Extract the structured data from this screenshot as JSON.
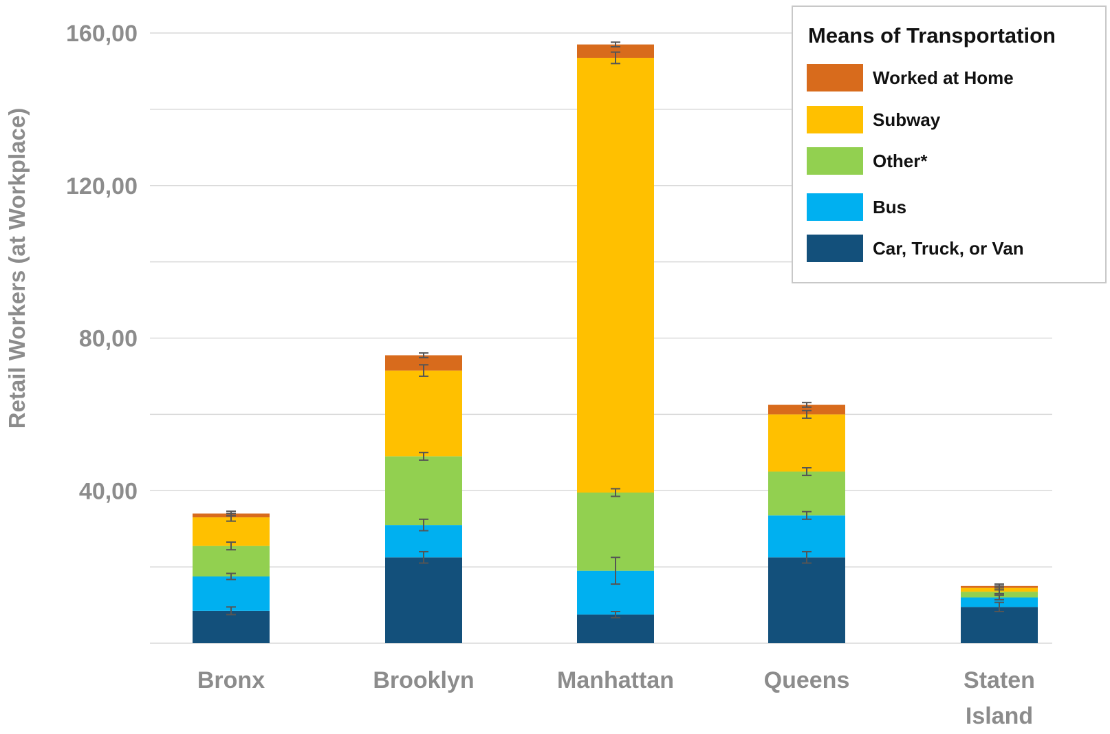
{
  "chart_data": {
    "type": "bar",
    "stacked": true,
    "title": "",
    "xlabel": "",
    "ylabel": "Retail Workers (at Workplace)",
    "ylim": [
      0,
      160
    ],
    "yticks": [
      40,
      80,
      120,
      160
    ],
    "ytick_labels": [
      "40,00",
      "80,00",
      "120,00",
      "160,00"
    ],
    "grid": true,
    "legend": {
      "title": "Means of Transportation",
      "position": "top-right",
      "order": [
        "Worked at Home",
        "Subway",
        "Other*",
        "Bus",
        "Car, Truck, or Van"
      ]
    },
    "categories": [
      "Bronx",
      "Brooklyn",
      "Manhattan",
      "Queens",
      "Staten Island"
    ],
    "category_lines": [
      [
        "Bronx"
      ],
      [
        "Brooklyn"
      ],
      [
        "Manhattan"
      ],
      [
        "Queens"
      ],
      [
        "Staten",
        "Island"
      ]
    ],
    "series": [
      {
        "name": "Car, Truck, or Van",
        "color": "#13507b",
        "values": [
          8.5,
          22.5,
          7.5,
          22.5,
          9.5
        ],
        "error": [
          1.0,
          1.5,
          0.8,
          1.5,
          1.2
        ]
      },
      {
        "name": "Bus",
        "color": "#00b0f0",
        "values": [
          9,
          8.5,
          11.5,
          11,
          2.5
        ],
        "error": [
          0.8,
          1.5,
          3.5,
          1.0,
          0.6
        ]
      },
      {
        "name": "Other*",
        "color": "#92d050",
        "values": [
          8,
          18,
          20.5,
          11.5,
          1.5
        ],
        "error": [
          1.0,
          1.0,
          1.0,
          1.0,
          0.5
        ]
      },
      {
        "name": "Subway",
        "color": "#ffc000",
        "values": [
          7.5,
          22.5,
          114,
          15,
          1
        ],
        "error": [
          1.0,
          1.5,
          1.5,
          1.0,
          0.5
        ]
      },
      {
        "name": "Worked at Home",
        "color": "#d86b1c",
        "values": [
          1,
          4,
          3.5,
          2.5,
          0.5
        ],
        "error": [
          0.6,
          0.6,
          0.6,
          0.6,
          0.5
        ]
      }
    ]
  }
}
